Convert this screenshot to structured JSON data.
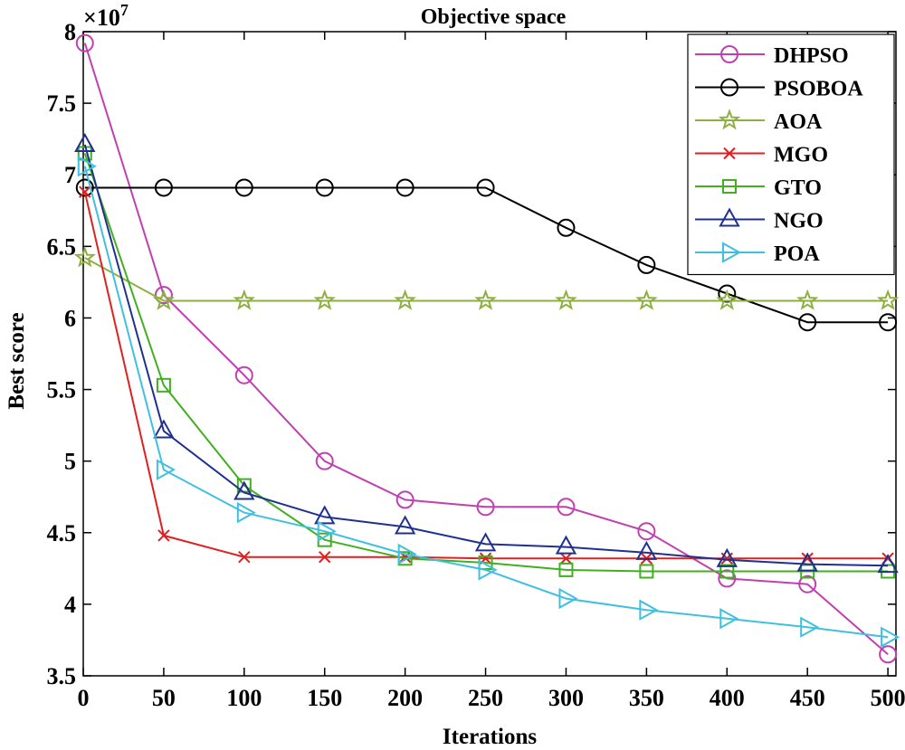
{
  "chart_data": {
    "type": "line",
    "title": "Objective space",
    "xlabel": "Iterations",
    "ylabel": "Best score",
    "y_multiplier_label": "×10",
    "y_multiplier_exponent": "7",
    "xlim": [
      0,
      505
    ],
    "ylim": [
      3.5,
      8
    ],
    "x_ticks": [
      0,
      50,
      100,
      150,
      200,
      250,
      300,
      350,
      400,
      450,
      500
    ],
    "x_tick_labels": [
      "0",
      "50",
      "100",
      "150",
      "200",
      "250",
      "300",
      "350",
      "400",
      "450",
      "500"
    ],
    "y_ticks": [
      3.5,
      4,
      4.5,
      5,
      5.5,
      6,
      6.5,
      7,
      7.5,
      8
    ],
    "y_tick_labels": [
      "3.5",
      "4",
      "4.5",
      "5",
      "5.5",
      "6",
      "6.5",
      "7",
      "7.5",
      "8"
    ],
    "legend_position": "top-right",
    "x": [
      1,
      50,
      100,
      150,
      200,
      250,
      300,
      350,
      400,
      450,
      500
    ],
    "series": [
      {
        "name": "DHPSO",
        "color": "#c040b0",
        "marker": "circle",
        "values": [
          7.92,
          6.16,
          5.6,
          5.0,
          4.73,
          4.68,
          4.68,
          4.51,
          4.18,
          4.14,
          3.65
        ]
      },
      {
        "name": "PSOBOA",
        "color": "#000000",
        "marker": "circle",
        "values": [
          6.91,
          6.91,
          6.91,
          6.91,
          6.91,
          6.91,
          6.63,
          6.37,
          6.17,
          5.97,
          5.97
        ]
      },
      {
        "name": "AOA",
        "color": "#8db040",
        "marker": "star",
        "values": [
          6.42,
          6.12,
          6.12,
          6.12,
          6.12,
          6.12,
          6.12,
          6.12,
          6.12,
          6.12,
          6.12
        ]
      },
      {
        "name": "MGO",
        "color": "#e02020",
        "marker": "x",
        "values": [
          6.88,
          4.48,
          4.33,
          4.33,
          4.33,
          4.32,
          4.32,
          4.32,
          4.32,
          4.32,
          4.32
        ]
      },
      {
        "name": "GTO",
        "color": "#40b020",
        "marker": "square",
        "values": [
          7.15,
          5.53,
          4.83,
          4.45,
          4.32,
          4.29,
          4.24,
          4.23,
          4.23,
          4.23,
          4.23
        ]
      },
      {
        "name": "NGO",
        "color": "#203090",
        "marker": "triangle-up",
        "values": [
          7.21,
          5.21,
          4.78,
          4.61,
          4.54,
          4.42,
          4.4,
          4.36,
          4.31,
          4.28,
          4.27
        ]
      },
      {
        "name": "POA",
        "color": "#40c0e0",
        "marker": "triangle-right",
        "values": [
          7.06,
          4.94,
          4.64,
          4.51,
          4.35,
          4.24,
          4.04,
          3.96,
          3.9,
          3.84,
          3.77
        ]
      }
    ]
  }
}
